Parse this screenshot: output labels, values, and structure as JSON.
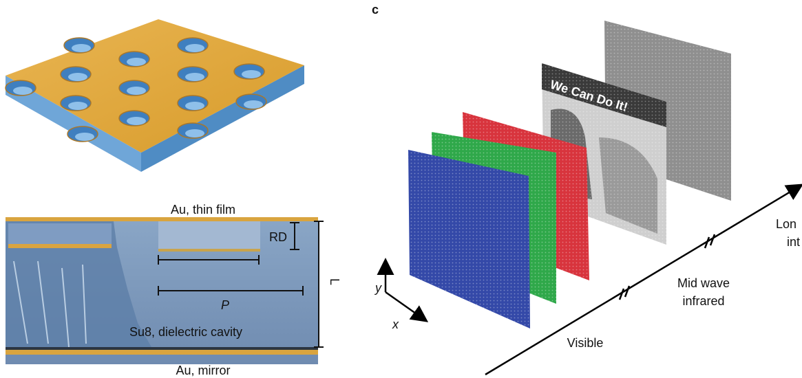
{
  "panel_c_label": "c",
  "cross_section": {
    "top_label": "Au, thin film",
    "rd_label": "RD",
    "l_label": "L",
    "p_label": "P",
    "cavity_label": "Su8, dielectric cavity",
    "bottom_label": "Au, mirror"
  },
  "spectrum": {
    "poster_text": "We Can Do It!",
    "axis_y": "y",
    "axis_x": "x",
    "visible": "Visible",
    "mid_wave": [
      "Mid wave",
      "infrared"
    ],
    "long_wave": [
      "Lon",
      "int"
    ]
  }
}
